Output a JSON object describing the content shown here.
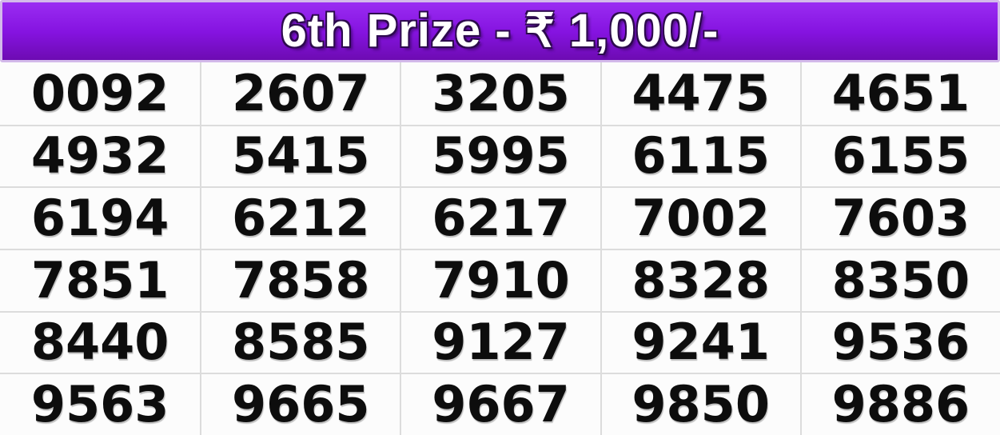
{
  "header": {
    "title": "6th Prize - ₹ 1,000/-",
    "prize_rank": "6th Prize",
    "prize_amount": "₹ 1,000/-",
    "colors": {
      "gradient_top": "#9a2cf2",
      "gradient_mid": "#8513e0",
      "gradient_bottom": "#6d0bb2",
      "border": "#d3b9ea",
      "text": "#ffffff",
      "text_outline": "#2d0a4e"
    }
  },
  "grid": {
    "columns": 5,
    "rows": [
      [
        "0092",
        "2607",
        "3205",
        "4475",
        "4651"
      ],
      [
        "4932",
        "5415",
        "5995",
        "6115",
        "6155"
      ],
      [
        "6194",
        "6212",
        "6217",
        "7002",
        "7603"
      ],
      [
        "7851",
        "7858",
        "7910",
        "8328",
        "8350"
      ],
      [
        "8440",
        "8585",
        "9127",
        "9241",
        "9536"
      ],
      [
        "9563",
        "9665",
        "9667",
        "9850",
        "9886"
      ]
    ],
    "colors": {
      "cell_background": "#fcfcfc",
      "grid_line": "#dcdcdc",
      "number_text": "#0d0d0d"
    }
  }
}
